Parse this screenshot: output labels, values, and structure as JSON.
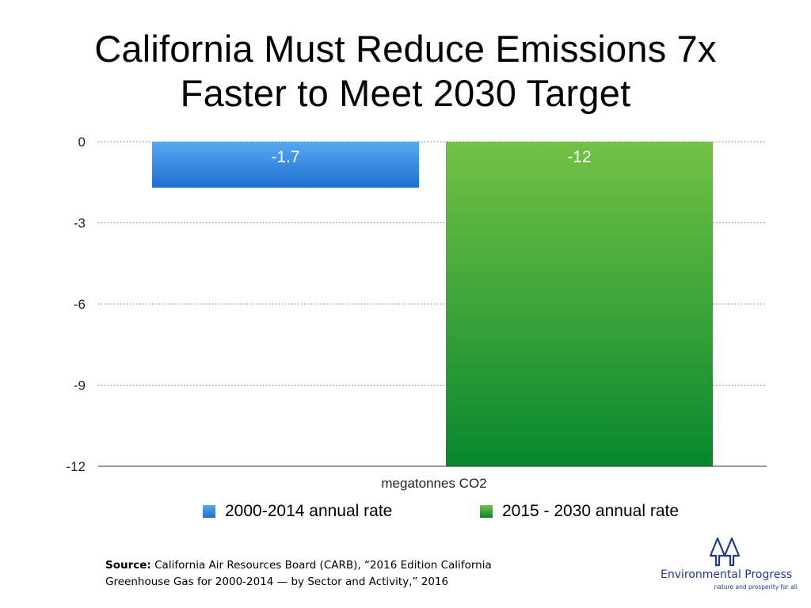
{
  "chart_data": {
    "type": "bar",
    "title": "California Must Reduce Emissions 7x Faster to Meet 2030 Target",
    "title_lines": [
      "California Must Reduce Emissions 7x",
      "Faster to Meet 2030 Target"
    ],
    "categories": [
      "megatonnes CO2"
    ],
    "xlabel": "megatonnes CO2",
    "ylabel": "",
    "ylim": [
      -12,
      0
    ],
    "yticks": [
      0,
      -3,
      -6,
      -9,
      -12
    ],
    "ytick_labels": [
      "0",
      "-3",
      "-6",
      "-9",
      "-12"
    ],
    "grid": true,
    "legend_position": "bottom",
    "series": [
      {
        "name": "2000-2014 annual rate",
        "values": [
          -1.7
        ],
        "label": "-1.7",
        "color_top": "#55aaf2",
        "color_bottom": "#1f6fd0"
      },
      {
        "name": "2015 - 2030 annual rate",
        "values": [
          -12
        ],
        "label": "-12",
        "color_top": "#72c244",
        "color_bottom": "#07882e"
      }
    ]
  },
  "source": {
    "label": "Source:",
    "line1": "California Air Resources Board (CARB), “2016 Edition California",
    "line2": "Greenhouse Gas for 2000-2014 — by Sector and Activity,” 2016"
  },
  "logo": {
    "name": "Environmental Progress",
    "tagline": "nature and prosperity for all",
    "icon": "trees-icon",
    "color": "#1f3a93"
  }
}
